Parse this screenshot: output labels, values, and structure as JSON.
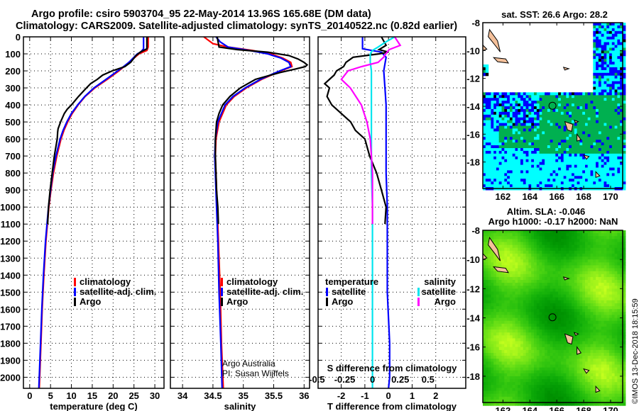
{
  "title_line1": "Argo profile: csiro 5903704_95 22-May-2014 13.96S 165.68E (DM data)",
  "title_line2": "Climatology: CARS2009. Satellite-adjusted climatology: synTS_20140522.nc (0.82d earlier)",
  "watermark": "©IMOS 13-Dec-2018 18:15:59",
  "credit": [
    "Argo Australia",
    "PI: Susan Wijffels"
  ],
  "colors": {
    "climatology": "#ff0000",
    "satellite": "#0000ff",
    "argo": "#000000",
    "sal_satellite": "#00e5ee",
    "sal_argo": "#ff00ff"
  },
  "chart_data": [
    {
      "type": "line",
      "id": "temperature",
      "xlabel": "temperature (deg C)",
      "ylabel": "",
      "xlim": [
        -1.5,
        32.2
      ],
      "ylim": [
        2065,
        0
      ],
      "xticks": [
        0,
        5,
        10,
        15,
        20,
        25,
        30
      ],
      "yticks": [
        0,
        100,
        200,
        300,
        400,
        500,
        600,
        700,
        800,
        900,
        1000,
        1100,
        1200,
        1300,
        1400,
        1500,
        1600,
        1700,
        1800,
        1900,
        2000
      ],
      "grid": true,
      "legend": {
        "placement": "lower-right",
        "entries": [
          "climatology",
          "satellite-adj. clim.",
          "Argo"
        ]
      },
      "series": [
        {
          "name": "climatology",
          "depth": [
            0,
            60,
            80,
            100,
            125,
            150,
            175,
            200,
            250,
            300,
            350,
            400,
            450,
            500,
            550,
            600,
            700,
            800,
            900,
            1000,
            1200,
            1400,
            1600,
            1800,
            2000,
            2065
          ],
          "values": [
            28.4,
            28.4,
            28.1,
            26.2,
            25.0,
            23.8,
            22.6,
            21.4,
            18.6,
            15.6,
            13.3,
            11.6,
            10.2,
            9.1,
            8.2,
            7.5,
            6.5,
            5.7,
            5.1,
            4.6,
            3.9,
            3.4,
            3.0,
            2.7,
            2.4,
            2.3
          ]
        },
        {
          "name": "satellite-adj. clim.",
          "depth": [
            0,
            70,
            90,
            100,
            125,
            150,
            175,
            200,
            250,
            300,
            350,
            400,
            450,
            500,
            550,
            600,
            700,
            800,
            900,
            1000,
            1200,
            1400,
            1600,
            1800,
            2000,
            2065
          ],
          "values": [
            27.3,
            27.3,
            26.6,
            25.8,
            24.8,
            23.8,
            22.5,
            21.1,
            18.3,
            15.4,
            13.2,
            11.5,
            10.0,
            8.9,
            8.0,
            7.3,
            6.3,
            5.5,
            5.0,
            4.5,
            3.8,
            3.3,
            2.9,
            2.6,
            2.3,
            2.2
          ]
        },
        {
          "name": "Argo",
          "depth": [
            0,
            70,
            90,
            110,
            150,
            175,
            200,
            225,
            250,
            275,
            300,
            350,
            400,
            425,
            450,
            500,
            540,
            560,
            600,
            700,
            800,
            900,
            1000,
            1100
          ],
          "values": [
            28.1,
            28.1,
            26.5,
            25.5,
            24.2,
            22.8,
            19.8,
            17.5,
            16.2,
            14.6,
            13.6,
            11.7,
            10.0,
            9.0,
            8.3,
            7.4,
            6.8,
            6.7,
            6.6,
            5.9,
            5.4,
            4.9,
            4.5,
            4.3
          ]
        }
      ]
    },
    {
      "type": "line",
      "id": "salinity",
      "xlabel": "salinity",
      "xlim": [
        33.8,
        36.09
      ],
      "ylim": [
        2065,
        0
      ],
      "xticks": [
        34,
        34.5,
        35,
        35.5,
        36
      ],
      "grid": true,
      "legend": {
        "placement": "lower-right",
        "entries": [
          "climatology",
          "satellite-adj. clim.",
          "Argo"
        ]
      },
      "series": [
        {
          "name": "climatology",
          "depth": [
            0,
            40,
            60,
            80,
            100,
            125,
            150,
            175,
            200,
            250,
            300,
            350,
            400,
            500,
            600,
            700,
            800,
            1000,
            1200,
            1500,
            1800,
            2065
          ],
          "values": [
            34.35,
            34.5,
            34.75,
            35.15,
            35.45,
            35.65,
            35.78,
            35.8,
            35.62,
            35.3,
            35.05,
            34.85,
            34.72,
            34.6,
            34.55,
            34.54,
            34.55,
            34.57,
            34.59,
            34.62,
            34.64,
            34.67
          ]
        },
        {
          "name": "satellite-adj. clim.",
          "depth": [
            0,
            30,
            60,
            80,
            100,
            125,
            150,
            175,
            200,
            250,
            300,
            350,
            400,
            500,
            600,
            700,
            800,
            1000,
            1200,
            1500,
            1800,
            2065
          ],
          "values": [
            34.55,
            34.62,
            34.75,
            35.1,
            35.4,
            35.62,
            35.75,
            35.78,
            35.6,
            35.28,
            35.03,
            34.83,
            34.7,
            34.58,
            34.54,
            34.53,
            34.54,
            34.56,
            34.58,
            34.6,
            34.63,
            34.65
          ]
        },
        {
          "name": "Argo",
          "depth": [
            0,
            60,
            75,
            90,
            110,
            130,
            150,
            165,
            175,
            190,
            210,
            250,
            300,
            350,
            400,
            450,
            500,
            600,
            700,
            800,
            900,
            1000,
            1100
          ],
          "values": [
            34.57,
            34.6,
            34.9,
            35.4,
            35.75,
            35.9,
            36.0,
            36.05,
            36.02,
            35.85,
            35.6,
            35.2,
            34.95,
            34.78,
            34.66,
            34.6,
            34.56,
            34.54,
            34.54,
            34.55,
            34.56,
            34.58,
            34.59
          ]
        }
      ]
    },
    {
      "type": "line",
      "id": "difference",
      "xlabel": "T difference from climatology",
      "xlabel_top": "S difference from climatology",
      "xlim": [
        -2.98,
        3.27
      ],
      "ylim": [
        2065,
        0
      ],
      "xticks": [
        -2,
        -1,
        0,
        1,
        2
      ],
      "s_xlim": [
        -0.49,
        0.84
      ],
      "s_xticks": [
        -0.5,
        -0.25,
        0,
        0.25,
        0.5
      ],
      "s_xtick_labels": [
        "-0.5",
        "-0.25",
        "0",
        "0.25",
        "0.5"
      ],
      "grid": true,
      "legend": {
        "placement": "lower",
        "headers": [
          "temperature",
          "salinity"
        ],
        "entries": [
          "satellite",
          "Argo",
          "satellite",
          "Argo"
        ]
      },
      "series": [
        {
          "name": "T satellite",
          "axis": "T",
          "depth": [
            0,
            70,
            90,
            120,
            200,
            300,
            400,
            600,
            800,
            1000,
            1200,
            1500,
            1800,
            2000,
            2065
          ],
          "values": [
            -1.1,
            -1.1,
            -0.3,
            -0.1,
            -0.2,
            -0.15,
            -0.1,
            -0.1,
            -0.1,
            -0.05,
            -0.05,
            -0.05,
            0.05,
            0.05,
            0.0
          ]
        },
        {
          "name": "T Argo",
          "axis": "T",
          "depth": [
            0,
            50,
            75,
            90,
            100,
            120,
            150,
            175,
            200,
            225,
            250,
            275,
            300,
            350,
            400,
            450,
            500,
            550,
            600,
            700,
            800,
            900,
            1000,
            1100
          ],
          "values": [
            -0.3,
            -0.1,
            -0.4,
            0.0,
            -0.4,
            -1.5,
            -1.8,
            -1.9,
            -2.2,
            -2.3,
            -2.5,
            -2.7,
            -2.5,
            -2.6,
            -2.4,
            -2.0,
            -1.6,
            -1.4,
            -1.0,
            -0.8,
            -0.5,
            -0.3,
            -0.1,
            -0.15
          ]
        },
        {
          "name": "S satellite",
          "axis": "S",
          "depth": [
            0,
            30,
            60,
            80,
            100,
            150,
            200,
            300,
            400,
            600,
            800,
            1000,
            1500,
            2000,
            2065
          ],
          "values": [
            0.2,
            0.12,
            0.05,
            0.0,
            -0.02,
            -0.02,
            -0.01,
            -0.01,
            -0.01,
            -0.01,
            -0.01,
            0.0,
            0.0,
            0.0,
            0.0
          ]
        },
        {
          "name": "S Argo",
          "axis": "S",
          "depth": [
            0,
            50,
            75,
            100,
            120,
            150,
            175,
            200,
            250,
            300,
            400,
            500,
            600,
            700,
            800,
            1000,
            1100
          ],
          "values": [
            0.2,
            0.25,
            0.15,
            0.12,
            0.1,
            0.05,
            -0.1,
            -0.22,
            -0.28,
            -0.2,
            -0.1,
            -0.05,
            -0.02,
            -0.01,
            0.0,
            0.0,
            0.0
          ]
        }
      ]
    },
    {
      "type": "heatmap",
      "id": "sst-map",
      "title": "sat. SST: 26.6 Argo: 28.2",
      "xlim": [
        160.5,
        170.9
      ],
      "ylim": [
        -8,
        -19.9
      ],
      "xticks": [
        162,
        164,
        166,
        168,
        170
      ],
      "yticks": [
        -8,
        -10,
        -12,
        -14,
        -16,
        -18
      ],
      "float_position": [
        165.68,
        -13.96
      ]
    },
    {
      "type": "heatmap",
      "id": "sla-map",
      "title": [
        "Altim. SLA: -0.046",
        "Argo h1000: -0.17 h2000: NaN"
      ],
      "xlim": [
        160.5,
        170.9
      ],
      "ylim": [
        -8,
        -19.8
      ],
      "xticks": [
        162,
        164,
        166,
        168,
        170
      ],
      "yticks": [
        -8,
        -10,
        -12,
        -14,
        -16,
        -18
      ],
      "float_position": [
        165.68,
        -13.96
      ]
    }
  ]
}
